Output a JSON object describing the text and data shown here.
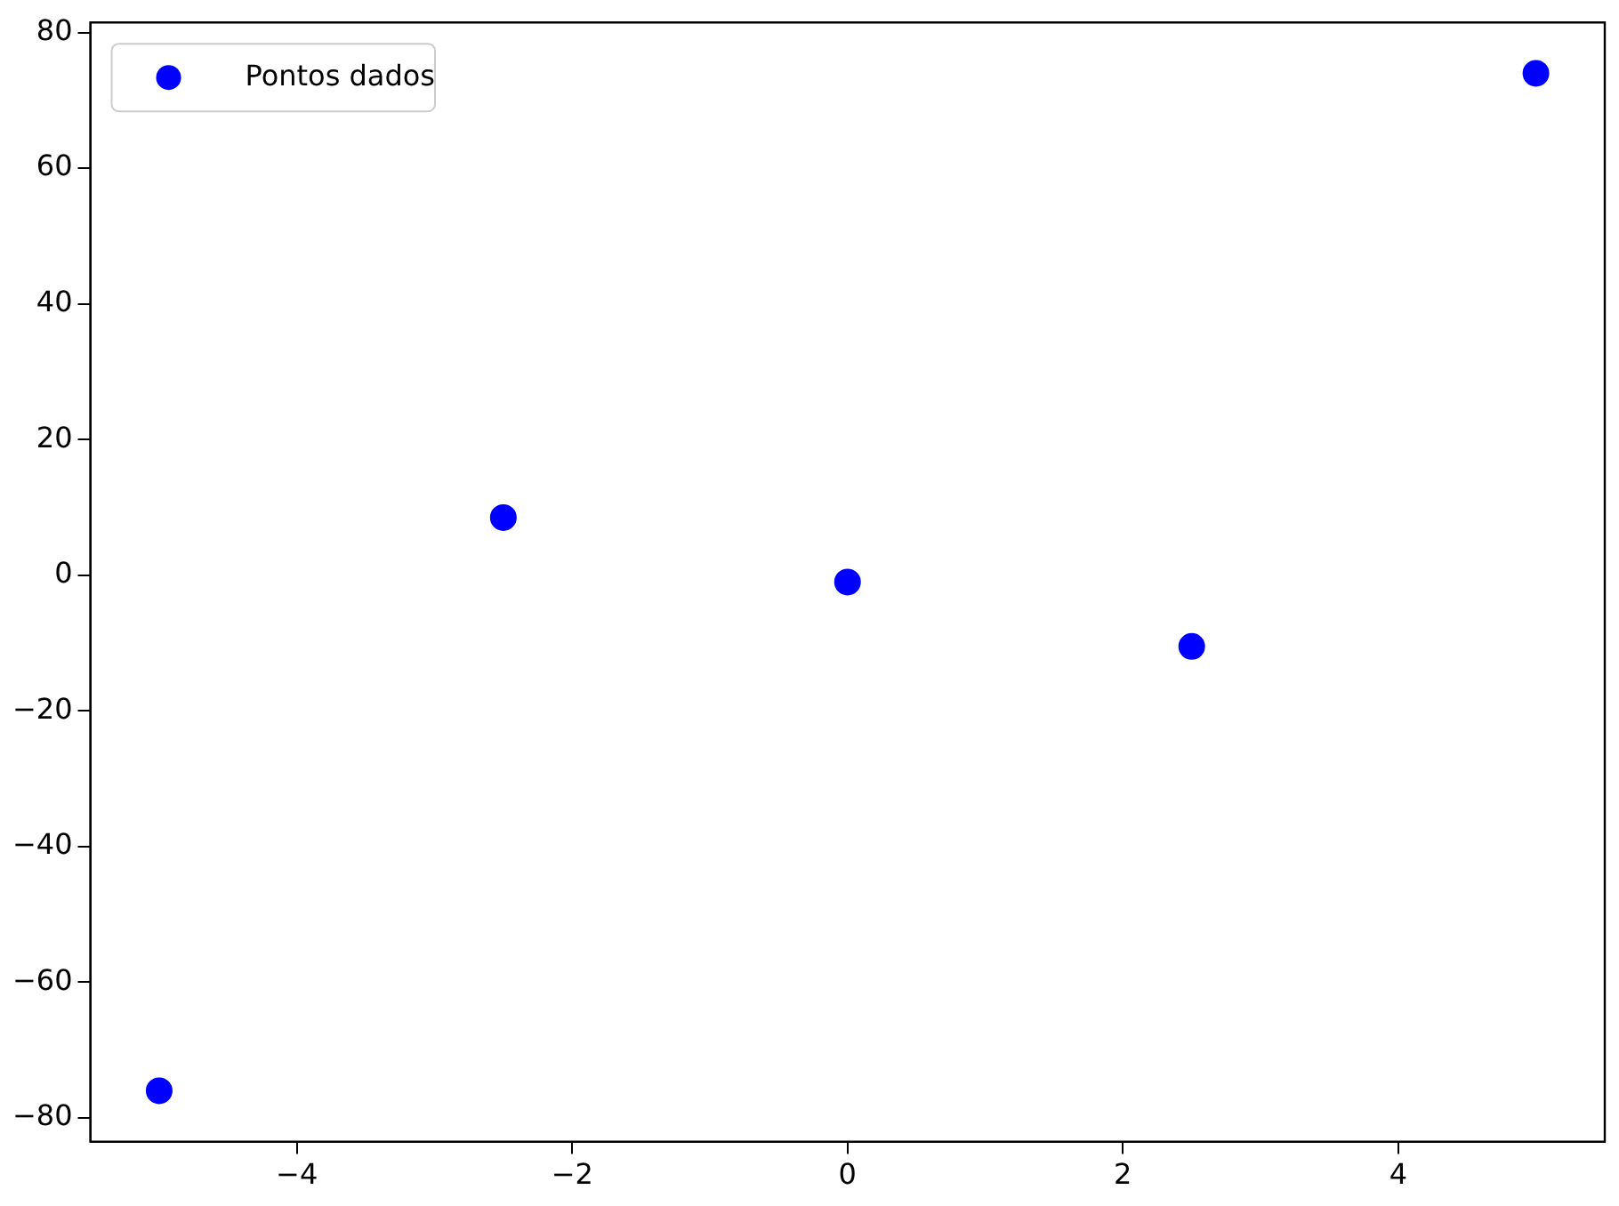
{
  "chart_data": {
    "type": "scatter",
    "x": [
      -5,
      -2.5,
      0,
      2.5,
      5
    ],
    "series": [
      {
        "name": "Pontos dados",
        "color": "#0000ff",
        "values": [
          -76,
          8.5,
          -1,
          -10.5,
          74
        ]
      }
    ],
    "xlim": [
      -5.5,
      5.5
    ],
    "xticks": [
      -4,
      -2,
      0,
      2,
      4
    ],
    "ylim": [
      -83.5,
      81.5
    ],
    "yticks": [
      -80,
      -60,
      -40,
      -20,
      0,
      20,
      40,
      60,
      80
    ],
    "legend": "top left",
    "marker": "circle",
    "grid": false
  }
}
